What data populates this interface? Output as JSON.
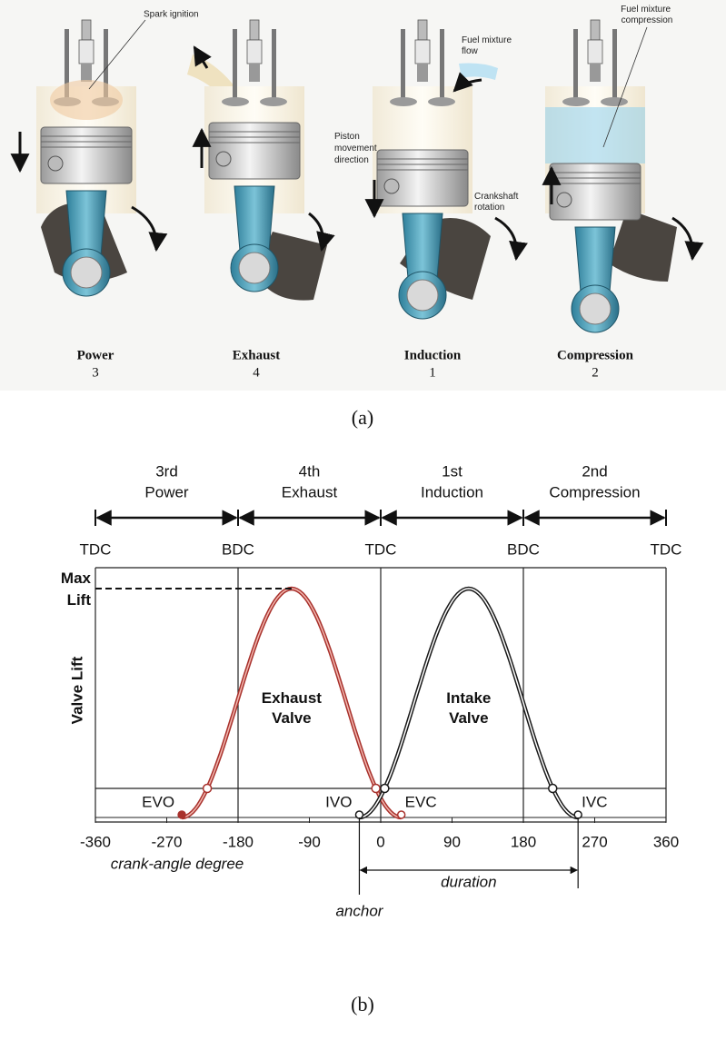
{
  "panel_a": {
    "spark_ignition": "Spark ignition",
    "fuel_mixture_flow": [
      "Fuel mixture",
      "flow"
    ],
    "piston_movement": [
      "Piston",
      "movement",
      "direction"
    ],
    "crankshaft_rotation": [
      "Crankshaft",
      "rotation"
    ],
    "fuel_mixture_compression": [
      "Fuel mixture",
      "compression"
    ],
    "strokes": [
      {
        "name": "Power",
        "number": 3
      },
      {
        "name": "Exhaust",
        "number": 4
      },
      {
        "name": "Induction",
        "number": 1
      },
      {
        "name": "Compression",
        "number": 2
      }
    ],
    "caption": "(a)"
  },
  "panel_b": {
    "phases": [
      {
        "ordinal": "3rd",
        "name": "Power"
      },
      {
        "ordinal": "4th",
        "name": "Exhaust"
      },
      {
        "ordinal": "1st",
        "name": "Induction"
      },
      {
        "ordinal": "2nd",
        "name": "Compression"
      }
    ],
    "dead_centers": [
      {
        "label": "TDC",
        "x": -360
      },
      {
        "label": "BDC",
        "x": -180
      },
      {
        "label": "TDC",
        "x": 0
      },
      {
        "label": "BDC",
        "x": 180
      },
      {
        "label": "TDC",
        "x": 360
      }
    ],
    "max_lift_label": [
      "Max",
      "Lift"
    ],
    "y_label": "Valve Lift",
    "x_label": "crank-angle degree",
    "xlim": [
      -360,
      360
    ],
    "xticks": [
      -360,
      -270,
      -180,
      -90,
      0,
      90,
      180,
      270,
      360
    ],
    "valves": [
      {
        "label": [
          "Exhaust",
          "Valve"
        ],
        "color": "#a8312c",
        "inner": "#f2b8b0",
        "open": {
          "label": "EVO",
          "x": -251
        },
        "close": {
          "label": "EVC",
          "x": 26
        }
      },
      {
        "label": [
          "Intake",
          "Valve"
        ],
        "color": "#1a1a1a",
        "inner": "#ffffff",
        "open": {
          "label": "IVO",
          "x": -27
        },
        "close": {
          "label": "IVC",
          "x": 249
        }
      }
    ],
    "anchor_label": "anchor",
    "duration_label": "duration",
    "caption": "(b)"
  }
}
